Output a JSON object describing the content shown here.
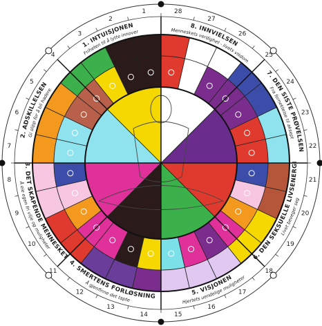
{
  "days": [
    1,
    2,
    3,
    4,
    5,
    6,
    7,
    8,
    9,
    10,
    11,
    12,
    13,
    14,
    15,
    16,
    17,
    18,
    19,
    20,
    21,
    22,
    23,
    24,
    25,
    26,
    27,
    28
  ],
  "sections": [
    {
      "title": "1. INTUISJONEN",
      "subtitle": "Friheten til å lytte innover"
    },
    {
      "title": "2. ADSKILLELSEN",
      "subtitle": "Gi slipp for å bli hadere"
    },
    {
      "title": "3. DET SKAPENDE MENNESKET",
      "subtitle": "Å eie egen fri vilje og muligheter"
    },
    {
      "title": "4. SMERTENS FORLØSNING",
      "subtitle": "Å gjenfinne det tapte"
    },
    {
      "title": "5. VISJONEN",
      "subtitle": "Hjertets uendelige muligheter"
    },
    {
      "title": "6. DEN SEKSUELLE LIVSENERGI",
      "subtitle": "Livet beveger seg"
    },
    {
      "title": "7. DEN SISTE PRØVELSEN",
      "subtitle": "Fra fornektelse til aksept"
    },
    {
      "title": "8. INNVIELSEN",
      "subtitle": "Menneskets verdighet - livets visdom"
    }
  ]
}
